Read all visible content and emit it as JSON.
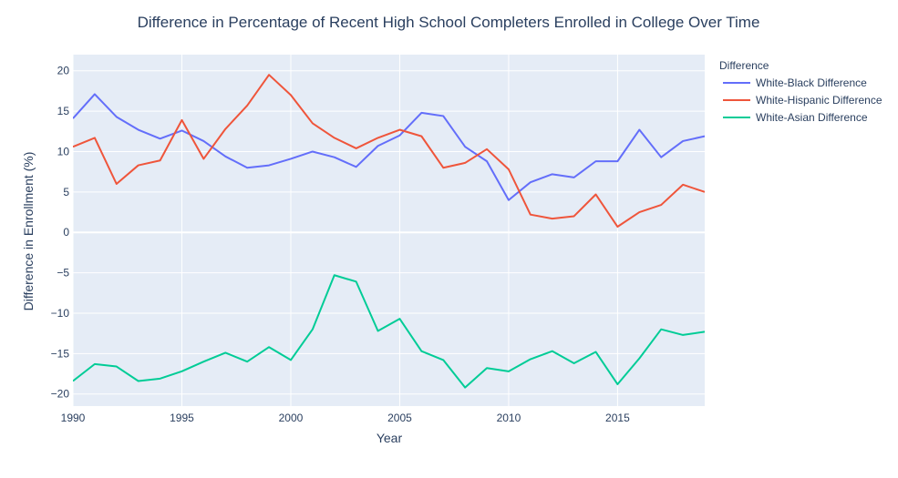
{
  "chart_data": {
    "type": "line",
    "title": "Difference in Percentage of Recent High School Completers Enrolled in College Over Time",
    "xlabel": "Year",
    "ylabel": "Difference in Enrollment (%)",
    "xlim": [
      1990,
      2019
    ],
    "ylim": [
      -21.5,
      22
    ],
    "x_ticks": [
      1990,
      1995,
      2000,
      2005,
      2010,
      2015
    ],
    "y_ticks": [
      -20,
      -15,
      -10,
      -5,
      0,
      5,
      10,
      15,
      20
    ],
    "grid": true,
    "legend_title": "Difference",
    "legend_position": "top-right, outside plot",
    "x": [
      1990,
      1991,
      1992,
      1993,
      1994,
      1995,
      1996,
      1997,
      1998,
      1999,
      2000,
      2001,
      2002,
      2003,
      2004,
      2005,
      2006,
      2007,
      2008,
      2009,
      2010,
      2011,
      2012,
      2013,
      2014,
      2015,
      2016,
      2017,
      2018,
      2019
    ],
    "series": [
      {
        "name": "White-Black Difference",
        "color": "#636efa",
        "values": [
          14.1,
          17.1,
          14.3,
          12.7,
          11.6,
          12.6,
          11.3,
          9.4,
          8.0,
          8.3,
          9.1,
          10.0,
          9.3,
          8.1,
          10.7,
          12.0,
          14.8,
          14.4,
          10.6,
          8.8,
          4.0,
          6.2,
          7.2,
          6.8,
          8.8,
          8.8,
          12.7,
          9.3,
          11.3,
          11.9
        ]
      },
      {
        "name": "White-Hispanic Difference",
        "color": "#ef553b",
        "values": [
          10.6,
          11.7,
          6.0,
          8.3,
          8.9,
          13.9,
          9.1,
          12.8,
          15.7,
          19.5,
          17.0,
          13.5,
          11.7,
          10.4,
          11.7,
          12.7,
          11.9,
          8.0,
          8.6,
          10.3,
          7.8,
          2.2,
          1.7,
          2.0,
          4.7,
          0.7,
          2.5,
          3.4,
          5.9,
          5.0
        ]
      },
      {
        "name": "White-Asian Difference",
        "color": "#00cc96",
        "values": [
          -18.4,
          -16.3,
          -16.6,
          -18.4,
          -18.1,
          -17.2,
          -16.0,
          -14.9,
          -16.0,
          -14.2,
          -15.8,
          -12.0,
          -5.3,
          -6.1,
          -12.2,
          -10.7,
          -14.7,
          -15.8,
          -19.2,
          -16.8,
          -17.2,
          -15.7,
          -14.7,
          -16.2,
          -14.8,
          -18.8,
          -15.6,
          -12.0,
          -12.7,
          -12.3
        ]
      }
    ]
  }
}
